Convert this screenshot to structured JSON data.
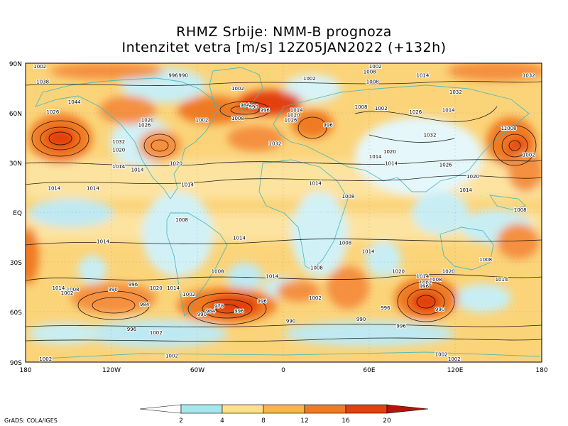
{
  "title_line1": "RHMZ Srbije: NMM-B prognoza",
  "title_line2": "Intenzitet vetra [m/s] 12Z05JAN2022 (+132h)",
  "credit": "GrADS: COLA/IGES",
  "lat_labels": [
    "90N",
    "60N",
    "30N",
    "EQ",
    "30S",
    "60S",
    "90S"
  ],
  "lon_labels": [
    "180",
    "120W",
    "60W",
    "0",
    "60E",
    "120E",
    "180"
  ],
  "colorbar": {
    "tick_labels": [
      "2",
      "4",
      "8",
      "12",
      "16",
      "20"
    ],
    "colors": [
      "#ffffff",
      "#a8e6ee",
      "#fde08a",
      "#f7b648",
      "#f07a22",
      "#e2400e",
      "#b4140a"
    ]
  },
  "pressure_labels": [
    {
      "text": "1002",
      "lon": -170,
      "lat": 89
    },
    {
      "text": "1038",
      "lon": -168,
      "lat": 79
    },
    {
      "text": "1044",
      "lon": -146,
      "lat": 67
    },
    {
      "text": "1026",
      "lon": -161,
      "lat": 61
    },
    {
      "text": "996",
      "lon": -77,
      "lat": 83
    },
    {
      "text": "990",
      "lon": -70,
      "lat": 83
    },
    {
      "text": "1002",
      "lon": -32,
      "lat": 75
    },
    {
      "text": "984",
      "lon": -27,
      "lat": 65
    },
    {
      "text": "990",
      "lon": -21,
      "lat": 64
    },
    {
      "text": "996",
      "lon": -13,
      "lat": 62
    },
    {
      "text": "1014",
      "lon": 9,
      "lat": 62
    },
    {
      "text": "1020",
      "lon": 7,
      "lat": 59
    },
    {
      "text": "1026",
      "lon": 5,
      "lat": 56
    },
    {
      "text": "1008",
      "lon": -32,
      "lat": 57
    },
    {
      "text": "1002",
      "lon": -57,
      "lat": 56
    },
    {
      "text": "1020",
      "lon": -95,
      "lat": 56
    },
    {
      "text": "1026",
      "lon": -97,
      "lat": 53
    },
    {
      "text": "1032",
      "lon": -115,
      "lat": 43
    },
    {
      "text": "1020",
      "lon": -115,
      "lat": 38
    },
    {
      "text": "1014",
      "lon": -115,
      "lat": 28
    },
    {
      "text": "1014",
      "lon": -102,
      "lat": 26
    },
    {
      "text": "1032",
      "lon": -6,
      "lat": 42
    },
    {
      "text": "996",
      "lon": 31,
      "lat": 53
    },
    {
      "text": "1002",
      "lon": 18,
      "lat": 81
    },
    {
      "text": "1002",
      "lon": 64,
      "lat": 89
    },
    {
      "text": "1008",
      "lon": 60,
      "lat": 85
    },
    {
      "text": "1008",
      "lon": 62,
      "lat": 79
    },
    {
      "text": "1014",
      "lon": 97,
      "lat": 83
    },
    {
      "text": "1032",
      "lon": 171,
      "lat": 83
    },
    {
      "text": "1032",
      "lon": 120,
      "lat": 73
    },
    {
      "text": "1014",
      "lon": 115,
      "lat": 62
    },
    {
      "text": "1008",
      "lon": 54,
      "lat": 64
    },
    {
      "text": "1002",
      "lon": 68,
      "lat": 63
    },
    {
      "text": "1026",
      "lon": 92,
      "lat": 61
    },
    {
      "text": "1032",
      "lon": 102,
      "lat": 47
    },
    {
      "text": "1008",
      "lon": 156,
      "lat": 51
    },
    {
      "text": "1002",
      "lon": 171,
      "lat": 35
    },
    {
      "text": "1020",
      "lon": 74,
      "lat": 37
    },
    {
      "text": "1014",
      "lon": 64,
      "lat": 34
    },
    {
      "text": "1014",
      "lon": 75,
      "lat": 30
    },
    {
      "text": "1026",
      "lon": 113,
      "lat": 29
    },
    {
      "text": "1020",
      "lon": 132,
      "lat": 22
    },
    {
      "text": "1014",
      "lon": 127,
      "lat": 14
    },
    {
      "text": "1008",
      "lon": 165,
      "lat": 2
    },
    {
      "text": "1008",
      "lon": 158,
      "lat": 51
    },
    {
      "text": "1014",
      "lon": -160,
      "lat": 15
    },
    {
      "text": "1020",
      "lon": -75,
      "lat": 30
    },
    {
      "text": "1014",
      "lon": -133,
      "lat": 15
    },
    {
      "text": "1014",
      "lon": -67,
      "lat": 17
    },
    {
      "text": "1014",
      "lon": 22,
      "lat": 18
    },
    {
      "text": "1008",
      "lon": 45,
      "lat": 10
    },
    {
      "text": "1008",
      "lon": -71,
      "lat": -4
    },
    {
      "text": "1014",
      "lon": -126,
      "lat": -17
    },
    {
      "text": "1014",
      "lon": -31,
      "lat": -15
    },
    {
      "text": "1008",
      "lon": 43,
      "lat": -18
    },
    {
      "text": "1014",
      "lon": 59,
      "lat": -23
    },
    {
      "text": "1008",
      "lon": 23,
      "lat": -33
    },
    {
      "text": "1008",
      "lon": -46,
      "lat": -35
    },
    {
      "text": "1014",
      "lon": -8,
      "lat": -38
    },
    {
      "text": "1020",
      "lon": 80,
      "lat": -35
    },
    {
      "text": "1020",
      "lon": 115,
      "lat": -35
    },
    {
      "text": "1014",
      "lon": 97,
      "lat": -38
    },
    {
      "text": "1008",
      "lon": 106,
      "lat": -40
    },
    {
      "text": "1002",
      "lon": 99,
      "lat": -42
    },
    {
      "text": "996",
      "lon": 98,
      "lat": -44
    },
    {
      "text": "990",
      "lon": 109,
      "lat": -58
    },
    {
      "text": "1008",
      "lon": 141,
      "lat": -28
    },
    {
      "text": "1014",
      "lon": 152,
      "lat": -40
    },
    {
      "text": "1014",
      "lon": -157,
      "lat": -45
    },
    {
      "text": "1008",
      "lon": -147,
      "lat": -46
    },
    {
      "text": "1002",
      "lon": -151,
      "lat": -48
    },
    {
      "text": "990",
      "lon": -119,
      "lat": -46
    },
    {
      "text": "996",
      "lon": -105,
      "lat": -43
    },
    {
      "text": "1020",
      "lon": -89,
      "lat": -45
    },
    {
      "text": "1014",
      "lon": -77,
      "lat": -45
    },
    {
      "text": "1002",
      "lon": -66,
      "lat": -49
    },
    {
      "text": "984",
      "lon": -97,
      "lat": -55
    },
    {
      "text": "978",
      "lon": -45,
      "lat": -56
    },
    {
      "text": "984",
      "lon": -51,
      "lat": -59
    },
    {
      "text": "990",
      "lon": -57,
      "lat": -61
    },
    {
      "text": "996",
      "lon": -31,
      "lat": -59
    },
    {
      "text": "996",
      "lon": -15,
      "lat": -53
    },
    {
      "text": "1002",
      "lon": 22,
      "lat": -51
    },
    {
      "text": "996",
      "lon": 71,
      "lat": -57
    },
    {
      "text": "990",
      "lon": 5,
      "lat": -65
    },
    {
      "text": "990",
      "lon": 54,
      "lat": -64
    },
    {
      "text": "996",
      "lon": 82,
      "lat": -68
    },
    {
      "text": "996",
      "lon": -106,
      "lat": -70
    },
    {
      "text": "1002",
      "lon": -89,
      "lat": -72
    },
    {
      "text": "1002",
      "lon": -78,
      "lat": -86
    },
    {
      "text": "1002",
      "lon": 110,
      "lat": -85
    },
    {
      "text": "1002",
      "lon": 119,
      "lat": -88
    },
    {
      "text": "1002",
      "lon": -166,
      "lat": -89
    }
  ]
}
